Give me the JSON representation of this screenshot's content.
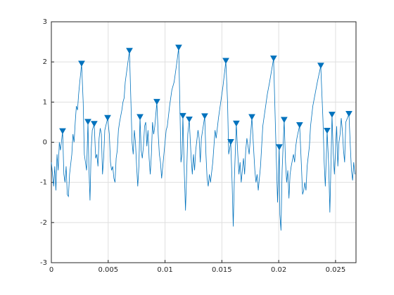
{
  "chart_data": {
    "type": "line",
    "xlim": [
      0,
      0.0268
    ],
    "xticks": [
      0,
      0.005,
      0.01,
      0.015,
      0.02,
      0.025
    ],
    "ylim": [
      -3,
      3
    ],
    "yticks": [
      -3,
      -2,
      -1,
      0,
      1,
      2,
      3
    ],
    "grid": true,
    "series": [
      {
        "color": "#0072bd",
        "marker": "none",
        "x": [
          0,
          0.0002,
          0.0003,
          0.0004,
          0.0005,
          0.0006,
          0.0007,
          0.0008,
          0.00099,
          0.0011,
          0.0012,
          0.0013,
          0.0014,
          0.0015,
          0.0016,
          0.0018,
          0.0019,
          0.002,
          0.0021,
          0.0022,
          0.0023,
          0.0024,
          0.0025,
          0.00266,
          0.0028,
          0.0029,
          0.003,
          0.0031,
          0.00322,
          0.0033,
          0.0034,
          0.0035,
          0.0036,
          0.00377,
          0.0039,
          0.004,
          0.0041,
          0.0042,
          0.0043,
          0.0044,
          0.0045,
          0.0046,
          0.0047,
          0.00495,
          0.0051,
          0.0052,
          0.0053,
          0.0054,
          0.0055,
          0.0056,
          0.0057,
          0.0058,
          0.0059,
          0.006,
          0.0062,
          0.0063,
          0.0064,
          0.0065,
          0.00687,
          0.007,
          0.0071,
          0.0072,
          0.0073,
          0.0074,
          0.0075,
          0.0076,
          0.0077,
          0.0078,
          0.0079,
          0.008,
          0.0081,
          0.0082,
          0.0083,
          0.0084,
          0.0085,
          0.0086,
          0.0087,
          0.0088,
          0.0089,
          0.009,
          0.0091,
          0.00928,
          0.0094,
          0.0095,
          0.0096,
          0.0097,
          0.0098,
          0.0099,
          0.0101,
          0.0102,
          0.0104,
          0.0106,
          0.0108,
          0.011,
          0.0112,
          0.0113,
          0.0114,
          0.0115,
          0.01157,
          0.0117,
          0.0118,
          0.0119,
          0.012,
          0.01213,
          0.0123,
          0.0124,
          0.0125,
          0.0126,
          0.0127,
          0.0129,
          0.013,
          0.0131,
          0.0132,
          0.01349,
          0.0136,
          0.0137,
          0.0138,
          0.0139,
          0.014,
          0.0142,
          0.0144,
          0.0145,
          0.0147,
          0.0149,
          0.0151,
          0.01535,
          0.0155,
          0.0156,
          0.01578,
          0.0159,
          0.016,
          0.0161,
          0.01627,
          0.0164,
          0.0165,
          0.0166,
          0.0167,
          0.0169,
          0.017,
          0.0171,
          0.0172,
          0.0174,
          0.01764,
          0.0178,
          0.0179,
          0.018,
          0.0181,
          0.0182,
          0.0184,
          0.0186,
          0.0188,
          0.019,
          0.0192,
          0.01955,
          0.0197,
          0.0198,
          0.0199,
          0.02005,
          0.0201,
          0.0202,
          0.0203,
          0.02048,
          0.0206,
          0.0207,
          0.0208,
          0.0209,
          0.021,
          0.0211,
          0.0213,
          0.0214,
          0.0215,
          0.0216,
          0.02184,
          0.022,
          0.0221,
          0.0222,
          0.0223,
          0.0224,
          0.0225,
          0.0227,
          0.0228,
          0.023,
          0.0232,
          0.0234,
          0.0237,
          0.0239,
          0.024,
          0.0241,
          0.02426,
          0.0244,
          0.0245,
          0.0246,
          0.02469,
          0.0248,
          0.0249,
          0.025,
          0.0251,
          0.0252,
          0.0253,
          0.0254,
          0.0255,
          0.0256,
          0.0257,
          0.0258,
          0.0259,
          0.02618,
          0.0263,
          0.0264,
          0.0265,
          0.0266,
          0.0267
        ],
        "values": [
          -0.5,
          -1.1,
          -0.6,
          -1.2,
          -0.3,
          -0.7,
          0.0,
          -0.2,
          0.27,
          -0.8,
          -1.0,
          -0.6,
          -1.3,
          -1.35,
          -0.8,
          -0.3,
          0.2,
          0.0,
          0.5,
          0.9,
          0.8,
          1.2,
          1.5,
          1.95,
          1.0,
          -0.3,
          -0.5,
          -0.7,
          0.5,
          -0.6,
          -1.45,
          -0.2,
          0.3,
          0.45,
          -0.4,
          -0.3,
          -0.6,
          0.1,
          0.35,
          0.2,
          -0.8,
          -0.4,
          0.3,
          0.6,
          0.2,
          -0.5,
          -0.7,
          -0.6,
          -0.9,
          -1.0,
          -0.4,
          -0.2,
          0.3,
          0.5,
          0.8,
          1.0,
          1.1,
          1.5,
          2.27,
          1.0,
          0.0,
          -0.3,
          0.3,
          0.0,
          -0.6,
          -1.1,
          -0.6,
          0.62,
          -0.2,
          -0.4,
          -0.1,
          0.4,
          0.5,
          -0.1,
          0.3,
          -0.4,
          -0.8,
          -0.3,
          0.5,
          0.2,
          0.4,
          1.0,
          0.2,
          -0.3,
          -0.5,
          -0.9,
          -0.6,
          -0.3,
          0.3,
          0.4,
          0.9,
          1.3,
          1.5,
          1.9,
          2.35,
          1.0,
          -0.5,
          -0.3,
          0.65,
          -0.8,
          -1.7,
          -0.8,
          0.2,
          0.56,
          -0.4,
          -0.8,
          -0.3,
          -0.7,
          -0.2,
          0.3,
          0.1,
          -0.5,
          0.1,
          0.64,
          -0.3,
          -0.9,
          -1.1,
          -0.8,
          -1.0,
          -0.5,
          0.3,
          0.1,
          0.6,
          1.0,
          1.4,
          2.02,
          1.0,
          -0.3,
          0.0,
          -1.0,
          -2.1,
          -0.9,
          0.46,
          -0.3,
          -0.8,
          -0.5,
          -1.0,
          -0.4,
          -0.8,
          -0.2,
          0.1,
          -0.3,
          0.62,
          -0.2,
          -0.7,
          -1.0,
          -0.8,
          -1.2,
          -0.6,
          0.4,
          0.8,
          1.2,
          1.5,
          2.08,
          0.5,
          -0.5,
          -1.5,
          -0.13,
          -1.8,
          -2.2,
          -0.7,
          0.55,
          -0.5,
          -1.0,
          -0.7,
          -1.4,
          -0.8,
          -0.6,
          -0.3,
          -0.5,
          -0.1,
          0.1,
          0.42,
          -0.6,
          -1.3,
          -1.2,
          -1.0,
          -1.2,
          -0.6,
          -0.1,
          0.4,
          0.9,
          1.2,
          1.5,
          1.9,
          0.5,
          -0.5,
          -1.1,
          0.28,
          -0.6,
          -1.75,
          -0.5,
          0.68,
          -0.3,
          -0.8,
          -0.2,
          0.4,
          -0.6,
          0.0,
          0.2,
          0.6,
          0.3,
          -0.2,
          -0.5,
          0.5,
          0.7,
          -0.1,
          -0.7,
          -0.95,
          -0.5,
          -0.8
        ]
      },
      {
        "color": "#0072bd",
        "marker": "triangle-down",
        "x": [
          0.00099,
          0.00266,
          0.00322,
          0.00377,
          0.00495,
          0.00687,
          0.0078,
          0.00928,
          0.0112,
          0.01157,
          0.01213,
          0.01349,
          0.01535,
          0.01578,
          0.01627,
          0.01764,
          0.01955,
          0.02005,
          0.02048,
          0.02184,
          0.0237,
          0.02426,
          0.02469,
          0.02618
        ],
        "values": [
          0.27,
          1.95,
          0.5,
          0.45,
          0.6,
          2.27,
          0.62,
          1.0,
          2.35,
          0.65,
          0.56,
          0.64,
          2.02,
          0.0,
          0.46,
          0.62,
          2.08,
          -0.13,
          0.55,
          0.42,
          1.9,
          0.28,
          0.68,
          0.7
        ]
      }
    ]
  }
}
